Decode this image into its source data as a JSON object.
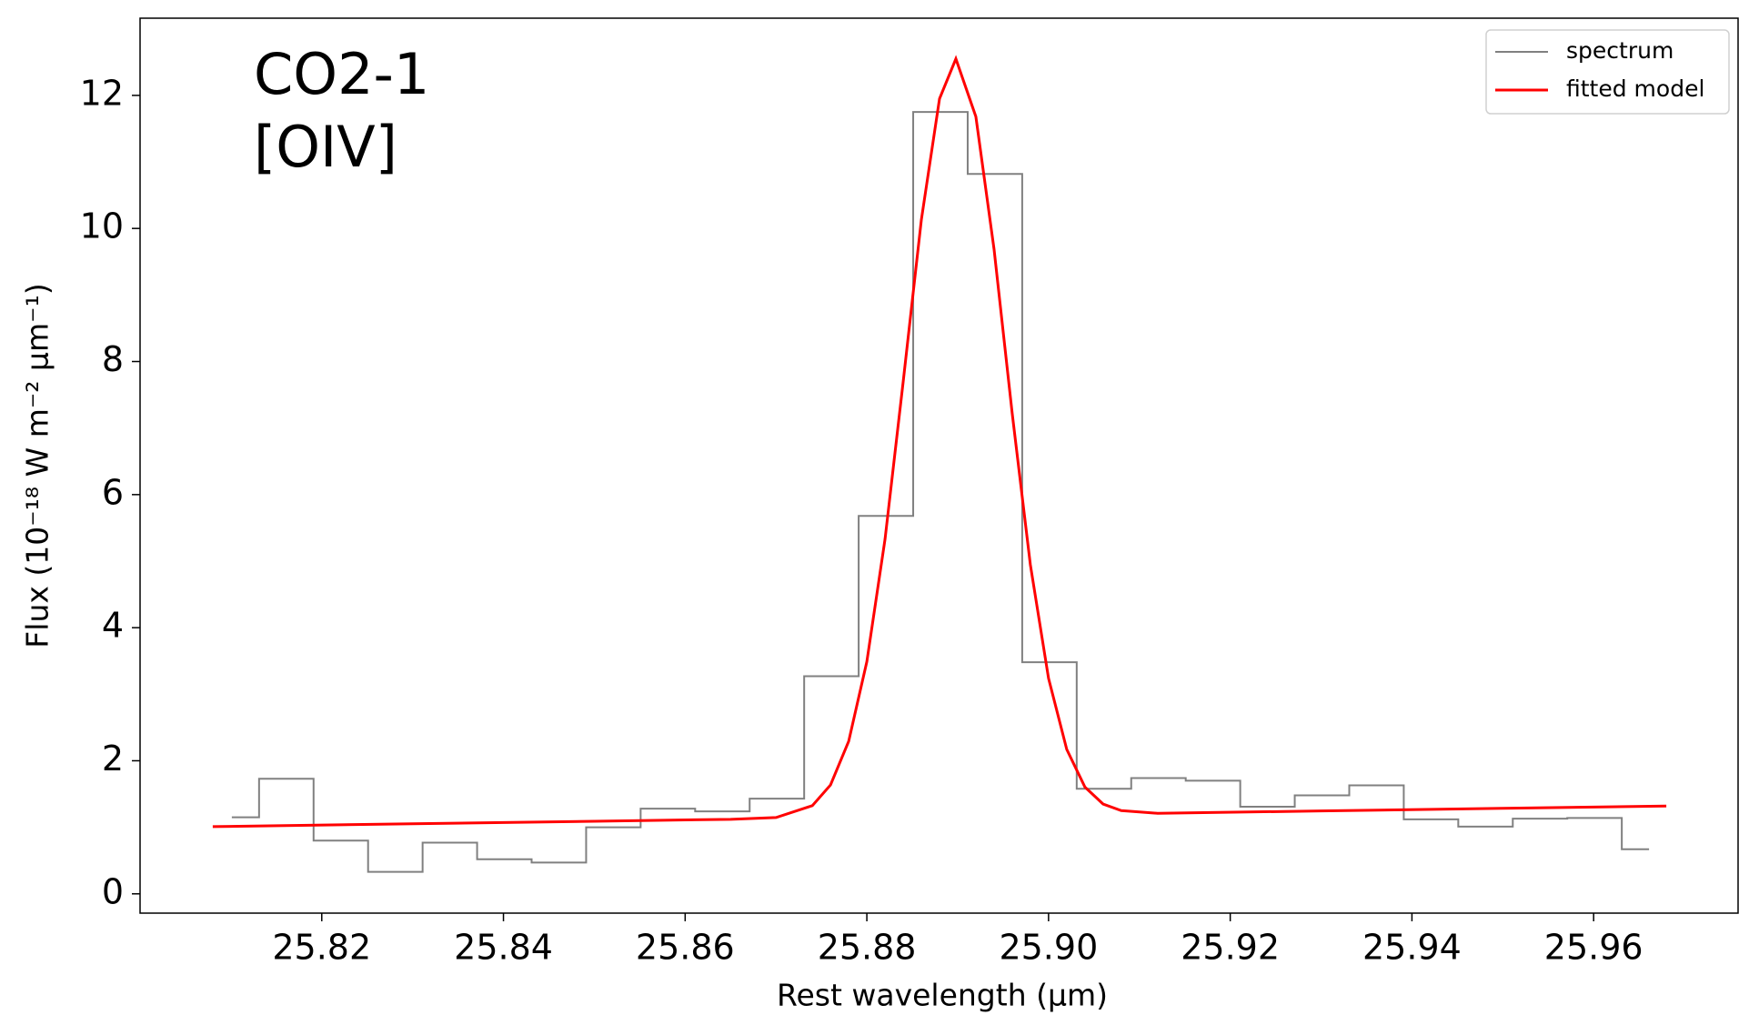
{
  "chart_data": {
    "type": "line",
    "xlabel": "Rest wavelength (μm)",
    "ylabel": "Flux (10⁻¹⁸ W m⁻² μm⁻¹)",
    "annotations": [
      "CO2-1",
      "[OIV]"
    ],
    "xlim": [
      25.8,
      25.9759
    ],
    "ylim": [
      -0.29,
      13.16
    ],
    "xticks": [
      25.82,
      25.84,
      25.86,
      25.88,
      {
        "value": 25.9,
        "label": "25.90"
      },
      25.92,
      25.94,
      25.96
    ],
    "yticks": [
      0,
      2,
      4,
      6,
      8,
      10,
      12
    ],
    "legend": "upper right",
    "series": [
      {
        "name": "spectrum",
        "color": "#808080",
        "drawstyle": "steps-mid",
        "x": [
          25.8101,
          25.8161,
          25.8221,
          25.8281,
          25.8341,
          25.8401,
          25.8461,
          25.8521,
          25.8581,
          25.8641,
          25.8701,
          25.8761,
          25.8821,
          25.8881,
          25.8941,
          25.9001,
          25.9061,
          25.9121,
          25.9181,
          25.9241,
          25.9301,
          25.9361,
          25.9421,
          25.9481,
          25.9541,
          25.9601,
          25.9661
        ],
        "values": [
          1.15,
          1.73,
          0.8,
          0.33,
          0.77,
          0.52,
          0.47,
          1.0,
          1.28,
          1.24,
          1.43,
          3.27,
          5.68,
          11.75,
          10.82,
          3.48,
          1.58,
          1.74,
          1.7,
          1.31,
          1.48,
          1.63,
          1.12,
          1.01,
          1.13,
          1.14,
          0.67
        ]
      },
      {
        "name": "fitted model",
        "color": "#ff0000",
        "x": [
          25.808,
          25.83,
          25.85,
          25.865,
          25.87,
          25.874,
          25.876,
          25.878,
          25.88,
          25.882,
          25.884,
          25.886,
          25.888,
          25.8898,
          25.892,
          25.894,
          25.896,
          25.898,
          25.9,
          25.902,
          25.904,
          25.906,
          25.908,
          25.912,
          25.93,
          25.95,
          25.968
        ],
        "values": [
          1.01,
          1.053,
          1.091,
          1.12,
          1.147,
          1.325,
          1.636,
          2.293,
          3.49,
          5.328,
          7.697,
          10.13,
          11.95,
          12.55,
          11.68,
          9.69,
          7.22,
          4.944,
          3.239,
          2.172,
          1.606,
          1.35,
          1.251,
          1.21,
          1.246,
          1.285,
          1.319
        ]
      }
    ]
  }
}
